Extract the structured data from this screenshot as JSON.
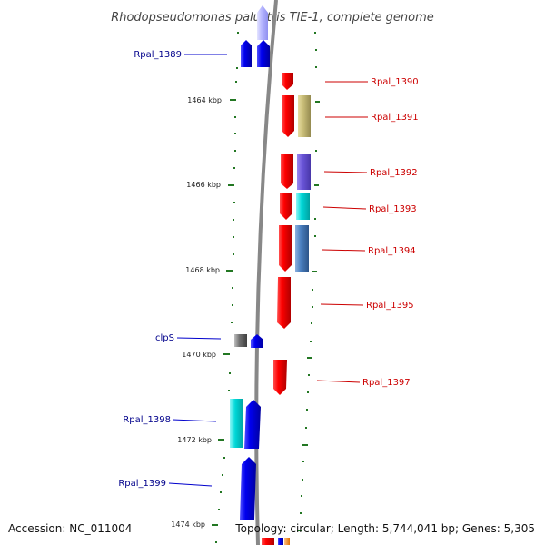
{
  "title": "Rhodopseudomonas palustris TIE-1, complete genome",
  "footer": {
    "accession": "Accession: NC_011004",
    "summary": "Topology: circular; Length: 5,744,041 bp; Genes: 5,305"
  },
  "ticks": [
    "1464 kbp",
    "1466 kbp",
    "1468 kbp",
    "1470 kbp",
    "1472 kbp",
    "1474 kbp"
  ],
  "gene_labels": {
    "rpal_1389": "Rpal_1389",
    "rpal_1390": "Rpal_1390",
    "rpal_1391": "Rpal_1391",
    "rpal_1392": "Rpal_1392",
    "rpal_1393": "Rpal_1393",
    "rpal_1394": "Rpal_1394",
    "rpal_1395": "Rpal_1395",
    "clps": "clpS",
    "rpal_1397": "Rpal_1397",
    "rpal_1398": "Rpal_1398",
    "rpal_1399": "Rpal_1399"
  },
  "colors": {
    "forward_strand": "#ff0000",
    "reverse_strand": "#0000ee",
    "backbone": "#888888",
    "tick": "#227722",
    "label_reverse": "#00008b",
    "label_forward": "#cc0000"
  }
}
